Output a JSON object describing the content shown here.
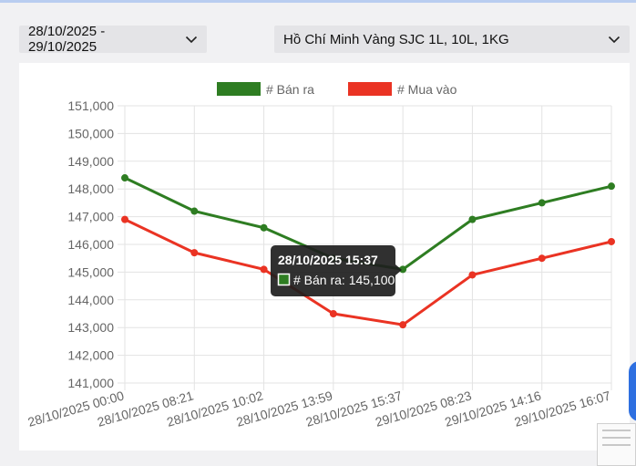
{
  "filters": {
    "date_range": "28/10/2025 - 29/10/2025",
    "product": "Hồ Chí Minh Vàng SJC 1L, 10L, 1KG"
  },
  "colors": {
    "sell": "#2e7d22",
    "buy": "#ea3323",
    "grid": "#e3e3e3",
    "axis_text": "#666666",
    "tooltip_bg": "#1e1e1e"
  },
  "chart_data": {
    "type": "line",
    "categories": [
      "28/10/2025 00:00",
      "28/10/2025 08:21",
      "28/10/2025 10:02",
      "28/10/2025 13:59",
      "28/10/2025 15:37",
      "29/10/2025 08:23",
      "29/10/2025 14:16",
      "29/10/2025 16:07"
    ],
    "series": [
      {
        "name": "# Bán ra",
        "values": [
          148400,
          147200,
          146600,
          145500,
          145100,
          146900,
          147500,
          148100
        ]
      },
      {
        "name": "# Mua vào",
        "values": [
          146900,
          145700,
          145100,
          143500,
          143100,
          144900,
          145500,
          146100
        ]
      }
    ],
    "ylim": [
      141000,
      151000
    ],
    "yticks": [
      "141,000",
      "142,000",
      "143,000",
      "144,000",
      "145,000",
      "146,000",
      "147,000",
      "148,000",
      "149,000",
      "150,000",
      "151,000"
    ],
    "legend": "top-center",
    "grid": true,
    "tooltip": {
      "title": "28/10/2025 15:37",
      "label": "# Bán ra: 145,100",
      "series_index": 0,
      "point_index": 4
    }
  }
}
